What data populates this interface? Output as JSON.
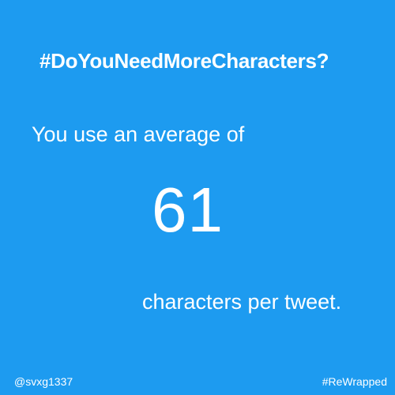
{
  "card": {
    "title": "#DoYouNeedMoreCharacters?",
    "intro": "You use an average of",
    "value": "61",
    "suffix": "characters per tweet.",
    "footer_left": "@svxg1337",
    "footer_right": "#ReWrapped"
  },
  "colors": {
    "background": "#1d9bf0",
    "text": "#ffffff"
  }
}
